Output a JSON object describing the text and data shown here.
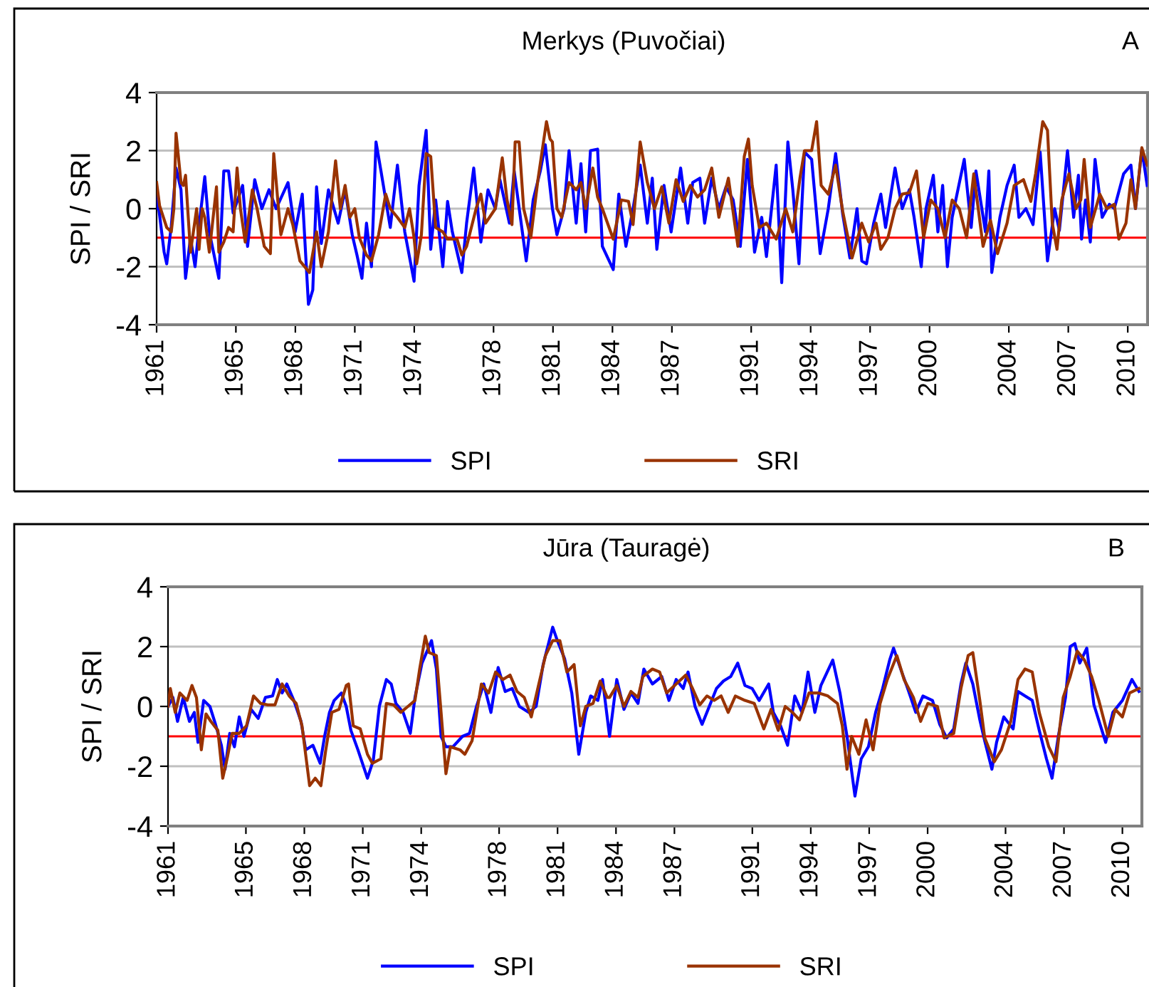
{
  "chart_data": [
    {
      "type": "line",
      "title": "Merkys (Puvočiai)",
      "ylabel": "SPI / SRI",
      "annotations": [
        "A"
      ],
      "xlim": [
        1961,
        2011
      ],
      "xticks": [
        1961,
        1965,
        1968,
        1971,
        1974,
        1978,
        1981,
        1984,
        1987,
        1991,
        1994,
        1997,
        2000,
        2004,
        2007,
        2010
      ],
      "ylim": [
        -4,
        4
      ],
      "yticks": [
        -4,
        -2,
        0,
        2,
        4
      ],
      "grid": "y",
      "legend": "bottom",
      "line_style": "solid",
      "marker": "none",
      "ref_lines": [
        {
          "axis": "y",
          "value": -1,
          "color": "#ff0000"
        }
      ],
      "series": [
        {
          "name": "SPI",
          "color": "#0000ff",
          "x": [
            1961.0,
            1961.02,
            1961.38,
            1961.51,
            1961.74,
            1961.98,
            1962.23,
            1962.46,
            1962.71,
            1962.94,
            1963.19,
            1963.43,
            1963.66,
            1964.14,
            1964.39,
            1964.63,
            1964.86,
            1965.34,
            1965.59,
            1965.95,
            1966.31,
            1966.67,
            1967.03,
            1967.63,
            1967.99,
            1968.35,
            1968.66,
            1968.88,
            1969.07,
            1969.31,
            1969.67,
            1970.16,
            1970.51,
            1970.87,
            1971.11,
            1971.36,
            1971.59,
            1971.84,
            1972.07,
            1972.32,
            1972.79,
            1973.15,
            1973.52,
            1973.99,
            1974.24,
            1974.6,
            1974.83,
            1975.08,
            1975.44,
            1975.68,
            1975.92,
            1976.4,
            1976.64,
            1977.0,
            1977.36,
            1977.72,
            1978.09,
            1978.32,
            1978.8,
            1979.04,
            1979.65,
            1980.0,
            1980.36,
            1980.61,
            1980.97,
            1981.2,
            1981.56,
            1981.81,
            1982.17,
            1982.41,
            1982.65,
            1982.89,
            1983.25,
            1983.49,
            1984.04,
            1984.32,
            1984.68,
            1985.04,
            1985.4,
            1985.76,
            1986.01,
            1986.24,
            1986.6,
            1986.96,
            1987.44,
            1987.8,
            1988.05,
            1988.41,
            1988.65,
            1989.01,
            1989.37,
            1989.73,
            1990.09,
            1990.45,
            1990.81,
            1991.17,
            1991.53,
            1991.77,
            1992.26,
            1992.54,
            1992.85,
            1993.1,
            1993.41,
            1993.69,
            1994.05,
            1994.48,
            1994.89,
            1995.26,
            1995.62,
            1995.98,
            1996.34,
            1996.58,
            1996.82,
            1997.18,
            1997.54,
            1997.78,
            1998.26,
            1998.62,
            1998.98,
            1999.22,
            1999.58,
            1999.82,
            2000.19,
            2000.42,
            2000.66,
            2000.9,
            2001.14,
            2001.75,
            2002.1,
            2002.34,
            2002.82,
            2002.99,
            2003.14,
            2003.55,
            2003.91,
            2004.27,
            2004.51,
            2004.86,
            2005.22,
            2005.58,
            2005.95,
            2006.31,
            2006.55,
            2006.96,
            2007.27,
            2007.51,
            2007.67,
            2007.87,
            2008.11,
            2008.35,
            2008.71,
            2009.07,
            2009.32,
            2009.79,
            2010.16,
            2010.39,
            2010.71,
            2010.98
          ],
          "values": [
            0,
            0.5,
            -1.5,
            -1.9,
            -0.6,
            1.4,
            0.65,
            -2.4,
            -1,
            -2,
            -0.3,
            1.1,
            -0.8,
            -2.4,
            1.3,
            1.3,
            -0.15,
            0.8,
            -1.3,
            1,
            0,
            0.65,
            0,
            0.9,
            -0.8,
            0.5,
            -3.3,
            -2.8,
            0.75,
            -1.2,
            0.65,
            -0.5,
            0.65,
            -0.9,
            -1.6,
            -2.4,
            -0.5,
            -2,
            2.3,
            1.3,
            -0.65,
            1.5,
            -0.8,
            -2.5,
            0.8,
            2.7,
            -1.4,
            0.3,
            -2,
            0.25,
            -0.8,
            -2.2,
            -0.5,
            1.4,
            -1.15,
            0.65,
            0,
            1,
            -0.5,
            1.3,
            -1.8,
            0.3,
            1.3,
            2.2,
            0,
            -0.9,
            0,
            2,
            -0.5,
            1.55,
            -0.8,
            2,
            2.05,
            -1.3,
            -2.1,
            0.5,
            -1.3,
            0,
            1.5,
            -0.5,
            1.05,
            -1.4,
            0.8,
            -0.8,
            1.4,
            -0.5,
            0.9,
            1.05,
            -0.5,
            1.05,
            0,
            0.75,
            0.3,
            -1.3,
            1.7,
            -1.5,
            -0.3,
            -1.65,
            1.5,
            -2.55,
            2.3,
            0.65,
            -1.9,
            1.95,
            1.7,
            -1.55,
            0,
            1.9,
            -0.2,
            -1.7,
            0,
            -1.8,
            -1.9,
            -0.5,
            0.5,
            -0.65,
            1.4,
            0,
            0.65,
            -0.3,
            -2,
            0,
            1.15,
            -0.8,
            0.8,
            -2,
            -0.3,
            1.7,
            -0.65,
            1.3,
            -0.8,
            1.3,
            -2.2,
            -0.3,
            0.8,
            1.5,
            -0.3,
            0,
            -0.55,
            1.95,
            -1.8,
            0,
            -0.75,
            2,
            -0.3,
            1.15,
            -1.05,
            0.3,
            -1.15,
            1.7,
            -0.3,
            0.15,
            0,
            1.2,
            1.5,
            0,
            2.05,
            0.8
          ]
        },
        {
          "name": "SRI",
          "color": "#993300",
          "x": [
            1961.0,
            1961.15,
            1961.51,
            1961.74,
            1961.87,
            1961.98,
            1962.23,
            1962.35,
            1962.46,
            1962.71,
            1963.02,
            1963.14,
            1963.3,
            1963.43,
            1963.66,
            1964.02,
            1964.14,
            1964.39,
            1964.63,
            1964.86,
            1965.06,
            1965.23,
            1965.47,
            1965.83,
            1966.07,
            1966.43,
            1966.74,
            1966.91,
            1967.15,
            1967.27,
            1967.63,
            1967.87,
            1968.23,
            1968.71,
            1969.07,
            1969.31,
            1969.67,
            1970.03,
            1970.27,
            1970.51,
            1970.75,
            1971.0,
            1971.23,
            1971.59,
            1971.84,
            1972.2,
            1972.56,
            1972.79,
            1973.15,
            1973.52,
            1973.76,
            1973.99,
            1974.12,
            1974.36,
            1974.6,
            1974.83,
            1975.08,
            1975.44,
            1975.68,
            1976.16,
            1976.4,
            1976.64,
            1977.12,
            1977.36,
            1977.6,
            1978.09,
            1978.44,
            1978.68,
            1978.93,
            1979.09,
            1979.29,
            1979.52,
            1979.88,
            1980.24,
            1980.67,
            1980.85,
            1980.97,
            1981.2,
            1981.44,
            1981.81,
            1982.17,
            1982.41,
            1982.65,
            1983.01,
            1983.25,
            1983.49,
            1984.04,
            1984.45,
            1984.81,
            1985.04,
            1985.4,
            1985.76,
            1986.12,
            1986.49,
            1986.85,
            1987.21,
            1987.57,
            1987.93,
            1988.29,
            1988.65,
            1989.01,
            1989.37,
            1989.85,
            1990.33,
            1990.65,
            1990.86,
            1991.05,
            1991.41,
            1991.77,
            1992.26,
            1992.74,
            1993.1,
            1993.46,
            1993.69,
            1994.05,
            1994.3,
            1994.53,
            1994.89,
            1995.26,
            1995.62,
            1996.09,
            1996.58,
            1996.93,
            1997.3,
            1997.54,
            1997.9,
            1998.26,
            1998.62,
            1998.98,
            1999.34,
            1999.7,
            2000.06,
            2000.42,
            2000.78,
            2001.14,
            2001.5,
            2001.87,
            2002.23,
            2002.7,
            2003.07,
            2003.43,
            2003.91,
            2004.27,
            2004.74,
            2005.11,
            2005.35,
            2005.71,
            2005.95,
            2006.19,
            2006.43,
            2006.67,
            2007.03,
            2007.39,
            2007.63,
            2007.8,
            2008.11,
            2008.59,
            2008.95,
            2009.32,
            2009.55,
            2009.91,
            2010.16,
            2010.39,
            2010.71,
            2010.98
          ],
          "values": [
            0.9,
            0.1,
            -0.65,
            -0.8,
            0,
            2.6,
            0.9,
            0.8,
            1.15,
            -1.5,
            0,
            -1.4,
            0,
            -0.3,
            -1.5,
            0.75,
            -1.5,
            -1.15,
            -0.65,
            -0.8,
            1.4,
            0,
            -1.15,
            0.65,
            0,
            -1.3,
            -1.55,
            1.9,
            0,
            -0.9,
            0,
            -0.55,
            -1.8,
            -2.2,
            -0.8,
            -2,
            -0.8,
            1.65,
            0,
            0.8,
            -0.3,
            0,
            -1,
            -1.6,
            -1.8,
            -0.9,
            0.5,
            0,
            -0.3,
            -0.65,
            0,
            -1,
            -1.9,
            -0.9,
            1.9,
            1.8,
            -0.65,
            -0.8,
            -1.05,
            -1.05,
            -1.6,
            -1.3,
            0,
            0.5,
            -0.5,
            0,
            1.75,
            0.3,
            -0.55,
            2.3,
            2.3,
            0,
            -1,
            1,
            3,
            2.4,
            2.3,
            0,
            -0.3,
            0.9,
            0.65,
            0.9,
            0,
            1.4,
            0.4,
            0,
            -1.05,
            0.3,
            0.25,
            -0.55,
            2.3,
            0.9,
            0,
            0.75,
            -0.5,
            1,
            0.25,
            0.8,
            0.4,
            0.65,
            1.4,
            -0.3,
            1.05,
            -1.3,
            1.8,
            2.4,
            0.8,
            -0.65,
            -0.5,
            -1.05,
            0,
            -0.8,
            1.05,
            2,
            2,
            3,
            0.8,
            0.5,
            1.5,
            -0.1,
            -1.7,
            -0.5,
            -1.15,
            -0.5,
            -1.4,
            -1,
            0,
            0.5,
            0.55,
            1.3,
            -1,
            0.3,
            0,
            -1,
            0.3,
            0,
            -1,
            1.2,
            -1.3,
            -0.4,
            -1.55,
            -0.5,
            0.8,
            1,
            0.25,
            1.2,
            3,
            2.7,
            -0.5,
            -1.4,
            0.3,
            1.2,
            0,
            0.3,
            1.7,
            -0.65,
            0.5,
            0,
            0.15,
            -1.05,
            -0.5,
            1,
            0,
            2.1,
            1.5
          ]
        }
      ]
    },
    {
      "type": "line",
      "title": "Jūra (Tauragė)",
      "ylabel": "SPI / SRI",
      "annotations": [
        "B"
      ],
      "xlim": [
        1961,
        2011
      ],
      "xticks": [
        1961,
        1965,
        1968,
        1971,
        1974,
        1978,
        1981,
        1984,
        1987,
        1991,
        1994,
        1997,
        2000,
        2004,
        2007,
        2010
      ],
      "ylim": [
        -4,
        4
      ],
      "yticks": [
        -4,
        -2,
        0,
        2,
        4
      ],
      "grid": "y",
      "legend": "bottom",
      "line_style": "solid",
      "marker": "none",
      "ref_lines": [
        {
          "axis": "y",
          "value": -1,
          "color": "#ff0000"
        }
      ],
      "series": [
        {
          "name": "SPI",
          "color": "#0000ff",
          "x": [
            1961.0,
            1961.25,
            1961.49,
            1961.78,
            1962.1,
            1962.35,
            1962.54,
            1962.83,
            1963.15,
            1963.44,
            1963.74,
            1963.93,
            1964.17,
            1964.41,
            1964.66,
            1964.9,
            1965.27,
            1965.63,
            1966.0,
            1966.37,
            1966.61,
            1966.86,
            1967.1,
            1967.46,
            1967.83,
            1968.07,
            1968.44,
            1968.81,
            1969.04,
            1969.29,
            1969.53,
            1969.9,
            1970.15,
            1970.39,
            1970.75,
            1971.24,
            1971.54,
            1971.85,
            1972.21,
            1972.46,
            1972.7,
            1973.07,
            1973.44,
            1973.68,
            1974.04,
            1974.53,
            1974.78,
            1975.02,
            1975.27,
            1975.63,
            1976.12,
            1976.48,
            1976.84,
            1977.21,
            1977.58,
            1977.95,
            1978.31,
            1978.67,
            1979.04,
            1979.53,
            1979.9,
            1980.26,
            1980.75,
            1980.99,
            1981.36,
            1981.73,
            1982.09,
            1982.45,
            1982.7,
            1983.07,
            1983.31,
            1983.67,
            1984.04,
            1984.41,
            1984.77,
            1985.13,
            1985.43,
            1985.87,
            1986.35,
            1986.72,
            1987.09,
            1987.45,
            1987.7,
            1988.06,
            1988.42,
            1988.79,
            1989.16,
            1989.52,
            1989.89,
            1990.25,
            1990.62,
            1990.99,
            1991.35,
            1991.84,
            1992.08,
            1992.45,
            1992.81,
            1993.18,
            1993.55,
            1993.86,
            1994.21,
            1994.52,
            1995.13,
            1995.5,
            1995.86,
            1996.27,
            1996.59,
            1996.96,
            1997.33,
            1997.69,
            1998.05,
            1998.25,
            1998.67,
            1999.03,
            1999.39,
            1999.76,
            2000.25,
            2000.62,
            2000.98,
            2001.34,
            2001.71,
            2001.96,
            2002.32,
            2002.68,
            2002.93,
            2003.3,
            2003.54,
            2003.91,
            2004.39,
            2004.64,
            2005.0,
            2005.37,
            2005.73,
            2006.1,
            2006.39,
            2006.71,
            2007.08,
            2007.32,
            2007.56,
            2007.81,
            2008.17,
            2008.54,
            2009.14,
            2009.51,
            2010.0,
            2010.49,
            2010.85
          ],
          "values": [
            0,
            0.3,
            -0.5,
            0.3,
            -0.5,
            -0.2,
            -1.2,
            0.2,
            0,
            -0.6,
            -1.3,
            -2.1,
            -0.9,
            -1.35,
            -0.35,
            -1,
            -0.1,
            -0.4,
            0.3,
            0.35,
            0.9,
            0.45,
            0.75,
            0.2,
            -0.5,
            -1.45,
            -1.3,
            -1.9,
            -1,
            -0.2,
            0.2,
            0.45,
            0,
            -0.8,
            -1.45,
            -2.4,
            -1.8,
            0,
            0.9,
            0.75,
            0.1,
            -0.2,
            -0.9,
            0.3,
            1.45,
            2.2,
            1.25,
            -1,
            -1.35,
            -1.35,
            -1,
            -0.9,
            0,
            0.75,
            -0.2,
            1.3,
            0.5,
            0.6,
            0,
            -0.2,
            0,
            1.4,
            2.65,
            2.2,
            1.6,
            0.45,
            -1.6,
            -0.2,
            0.35,
            0.2,
            0.9,
            -1,
            0.9,
            -0.1,
            0.45,
            0.1,
            1.25,
            0.75,
            1,
            0.2,
            0.9,
            0.6,
            1.15,
            0,
            -0.6,
            0,
            0.6,
            0.85,
            1,
            1.45,
            0.7,
            0.6,
            0.2,
            0.75,
            -0.2,
            -0.65,
            -1.3,
            0.35,
            -0.2,
            1.15,
            -0.2,
            0.7,
            1.55,
            0.45,
            -1,
            -3,
            -1.75,
            -1.35,
            -0.2,
            0.6,
            1.55,
            1.95,
            1.15,
            0.5,
            -0.2,
            0.35,
            0.2,
            -0.6,
            -1.05,
            -0.75,
            0.75,
            1.45,
            0.75,
            -0.45,
            -1.15,
            -2.1,
            -1.2,
            -0.35,
            -0.75,
            0.5,
            0.35,
            0.2,
            -0.8,
            -1.75,
            -2.4,
            -1,
            0.3,
            2,
            2.1,
            1.45,
            1.95,
            0.05,
            -1.2,
            -0.2,
            0.2,
            0.9,
            0.5
          ]
        },
        {
          "name": "SRI",
          "color": "#993300",
          "x": [
            1961.0,
            1961.12,
            1961.37,
            1961.61,
            1961.98,
            1962.23,
            1962.46,
            1962.71,
            1962.95,
            1963.2,
            1963.56,
            1963.81,
            1964.05,
            1964.29,
            1964.66,
            1965.03,
            1965.39,
            1965.75,
            1966.12,
            1966.49,
            1966.86,
            1967.22,
            1967.58,
            1967.88,
            1968.27,
            1968.56,
            1968.85,
            1969.09,
            1969.41,
            1969.78,
            1970.15,
            1970.27,
            1970.51,
            1970.87,
            1971.24,
            1971.49,
            1971.93,
            1972.21,
            1972.58,
            1972.95,
            1973.32,
            1973.68,
            1973.92,
            1974.21,
            1974.41,
            1974.78,
            1975.02,
            1975.27,
            1975.5,
            1975.99,
            1976.24,
            1976.61,
            1977.09,
            1977.46,
            1977.82,
            1978.19,
            1978.56,
            1978.92,
            1979.29,
            1979.65,
            1980.02,
            1980.38,
            1980.75,
            1981.12,
            1981.48,
            1981.85,
            1982.17,
            1982.45,
            1982.82,
            1983.19,
            1983.55,
            1983.67,
            1984.04,
            1984.41,
            1984.77,
            1985.13,
            1985.38,
            1985.87,
            1986.24,
            1986.6,
            1987.09,
            1987.58,
            1987.93,
            1988.3,
            1988.67,
            1989.04,
            1989.4,
            1989.76,
            1990.13,
            1990.62,
            1991.1,
            1991.59,
            1991.96,
            1992.33,
            1992.69,
            1993.06,
            1993.42,
            1993.91,
            1994.39,
            1994.88,
            1995.37,
            1995.62,
            1995.86,
            1996.1,
            1996.47,
            1996.84,
            1997.2,
            1997.56,
            1997.93,
            1998.42,
            1998.79,
            1999.27,
            1999.64,
            2000.01,
            2000.5,
            2000.85,
            2001.34,
            2001.71,
            2002.08,
            2002.32,
            2002.68,
            2002.93,
            2003.42,
            2003.79,
            2004.27,
            2004.64,
            2005.0,
            2005.37,
            2005.73,
            2006.22,
            2006.59,
            2006.96,
            2007.32,
            2007.68,
            2008.05,
            2008.42,
            2008.79,
            2009.27,
            2009.63,
            2010.0,
            2010.37,
            2010.85
          ],
          "values": [
            0,
            0.6,
            -0.2,
            0.45,
            0.2,
            0.7,
            0.3,
            -1.45,
            -0.25,
            -0.5,
            -0.8,
            -2.4,
            -1.7,
            -0.9,
            -0.9,
            -0.65,
            0.35,
            0.1,
            0.05,
            0.05,
            0.75,
            0.35,
            0.1,
            -0.65,
            -2.65,
            -2.4,
            -2.65,
            -1.5,
            -0.2,
            -0.1,
            0.7,
            0.75,
            -0.65,
            -0.75,
            -1.6,
            -1.9,
            -1.75,
            0.1,
            0.05,
            -0.2,
            0,
            0.2,
            1.25,
            2.35,
            1.8,
            1.7,
            -0.2,
            -2.25,
            -1.35,
            -1.45,
            -1.6,
            -1.15,
            0.75,
            0.45,
            1.15,
            0.9,
            1.05,
            0.5,
            0.3,
            -0.35,
            0.7,
            1.7,
            2.2,
            2.2,
            1.15,
            1.4,
            -0.65,
            0,
            0.1,
            0.85,
            0.3,
            0.3,
            0.7,
            0,
            0.5,
            0.3,
            1,
            1.25,
            1.15,
            0.45,
            0.75,
            1.05,
            0.6,
            0.05,
            0.35,
            0.2,
            0.35,
            -0.2,
            0.35,
            0.2,
            0.1,
            -0.75,
            -0.1,
            -0.8,
            0,
            -0.2,
            -0.45,
            0.45,
            0.45,
            0.35,
            0.1,
            -0.65,
            -2.1,
            -1,
            -1.6,
            -0.45,
            -1.45,
            0.1,
            0.9,
            1.7,
            0.9,
            0.3,
            -0.5,
            0.1,
            0,
            -1.05,
            -0.9,
            0.6,
            1.7,
            1.8,
            0.2,
            -1.05,
            -1.85,
            -1.45,
            -0.5,
            0.9,
            1.25,
            1.15,
            -0.2,
            -1.35,
            -1.85,
            0.3,
            1,
            1.85,
            1.55,
            1,
            0.2,
            -1,
            -0.1,
            -0.35,
            0.45,
            0.6
          ]
        }
      ]
    }
  ]
}
